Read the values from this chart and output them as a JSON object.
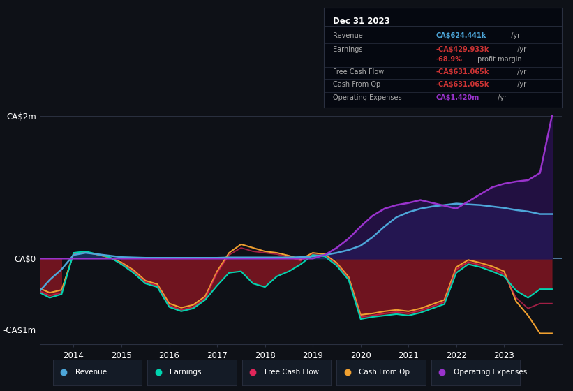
{
  "background_color": "#0e1117",
  "plot_bg_color": "#0e1117",
  "grid_color": "#2a3040",
  "zero_line_color": "#5b8db8",
  "colors": {
    "revenue": "#4da6d9",
    "earnings": "#00d4b0",
    "free_cash_flow": "#e0265a",
    "cash_from_op": "#f0a030",
    "operating_expenses": "#9933cc"
  },
  "fill_colors": {
    "earnings_neg": "#7a1520",
    "earnings_pos": "#1a4a30",
    "revenue_pos": "#143060",
    "op_exp_pos": "#2a1050"
  },
  "legend_items": [
    {
      "label": "Revenue",
      "color": "#4da6d9"
    },
    {
      "label": "Earnings",
      "color": "#00d4b0"
    },
    {
      "label": "Free Cash Flow",
      "color": "#e0265a"
    },
    {
      "label": "Cash From Op",
      "color": "#f0a030"
    },
    {
      "label": "Operating Expenses",
      "color": "#9933cc"
    }
  ],
  "info_box_bg": "#050810",
  "info_box_border": "#2a3040",
  "ylim": [
    -1200000,
    2200000
  ],
  "xlim": [
    2013.3,
    2024.2
  ],
  "ytick_vals": [
    -1000000,
    0,
    2000000
  ],
  "ytick_labels": [
    "-CA$1m",
    "CA$0",
    "CA$2m"
  ],
  "xtick_vals": [
    2014,
    2015,
    2016,
    2017,
    2018,
    2019,
    2020,
    2021,
    2022,
    2023
  ],
  "xtick_labels": [
    "2014",
    "2015",
    "2016",
    "2017",
    "2018",
    "2019",
    "2020",
    "2021",
    "2022",
    "2023"
  ]
}
